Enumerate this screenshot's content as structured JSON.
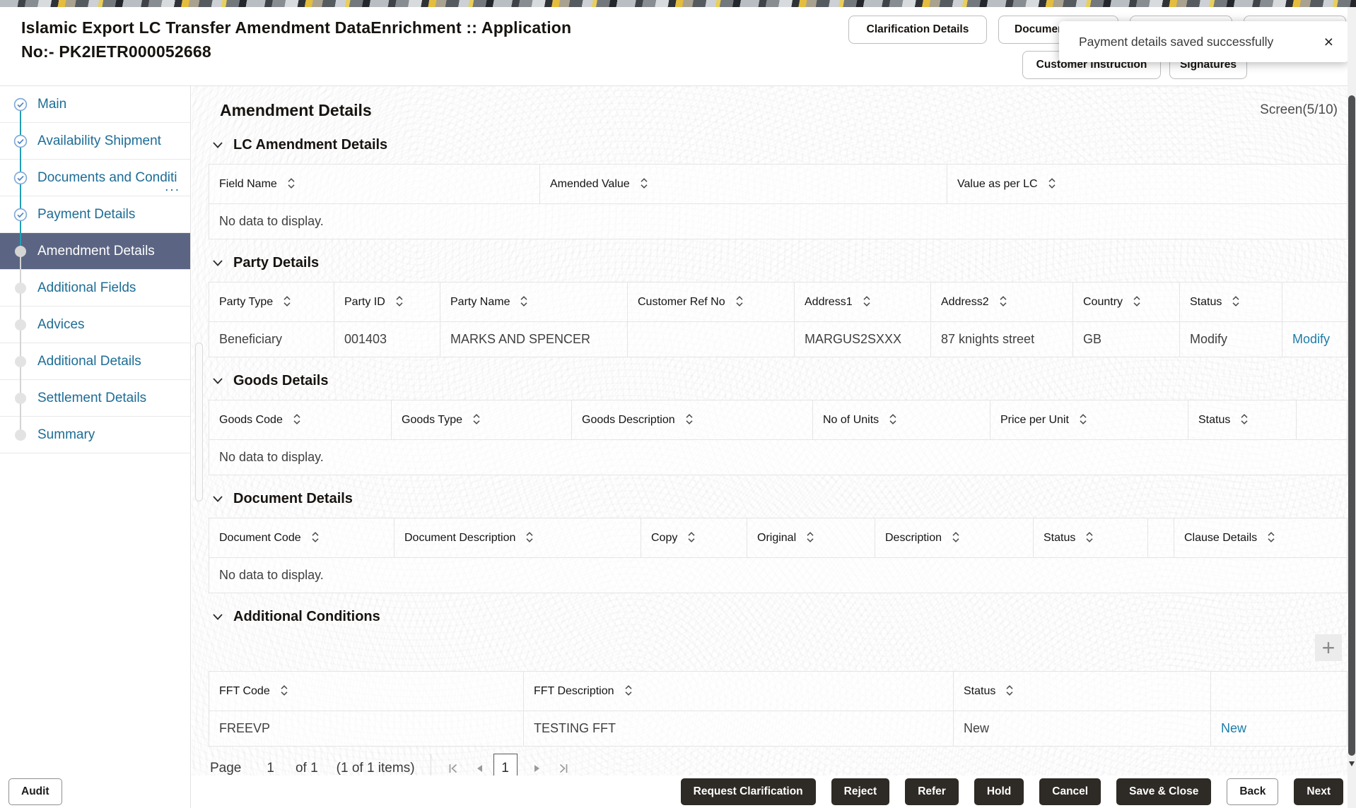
{
  "header": {
    "title_line1": "Islamic Export LC Transfer Amendment DataEnrichment :: Application",
    "title_line2": "No:- PK2IETR000052668",
    "buttons_row1": [
      {
        "label": "Clarification Details",
        "name": "clarification-details-button"
      },
      {
        "label": "Documents",
        "name": "documents-button"
      },
      {
        "label": "",
        "name": "hidden-button-1"
      },
      {
        "label": "",
        "name": "hidden-button-2"
      }
    ],
    "buttons_row2": [
      {
        "label": "Customer Instruction",
        "name": "customer-instruction-button"
      },
      {
        "label": "Signatures",
        "name": "signatures-button"
      }
    ],
    "toast": {
      "message": "Payment details saved successfully",
      "close_icon": "×"
    }
  },
  "sidebar": {
    "steps": [
      {
        "label": "Main",
        "state": "completed"
      },
      {
        "label": "Availability Shipment",
        "state": "completed"
      },
      {
        "label": "Documents and Conditi",
        "state": "completed",
        "ellipsis": "..."
      },
      {
        "label": "Payment Details",
        "state": "completed"
      },
      {
        "label": "Amendment Details",
        "state": "active"
      },
      {
        "label": "Additional Fields",
        "state": "upcoming"
      },
      {
        "label": "Advices",
        "state": "upcoming"
      },
      {
        "label": "Additional Details",
        "state": "upcoming"
      },
      {
        "label": "Settlement Details",
        "state": "upcoming"
      },
      {
        "label": "Summary",
        "state": "upcoming"
      }
    ]
  },
  "content": {
    "page_title": "Amendment Details",
    "screen_indicator": "Screen(5/10)",
    "sections": {
      "lc": {
        "title": "LC Amendment Details"
      },
      "party": {
        "title": "Party Details"
      },
      "goods": {
        "title": "Goods Details"
      },
      "docs": {
        "title": "Document Details"
      },
      "fft": {
        "title": "Additional Conditions"
      }
    },
    "tables": {
      "lc": {
        "columns": [
          "Field Name",
          "Amended Value",
          "Value as per LC"
        ],
        "widths": [
          468,
          576,
          566
        ],
        "rows": [],
        "empty_text": "No data to display."
      },
      "party": {
        "columns": [
          "Party Type",
          "Party ID",
          "Party Name",
          "Customer Ref No",
          "Address1",
          "Address2",
          "Country",
          "Status",
          ""
        ],
        "widths": [
          177,
          150,
          265,
          236,
          193,
          201,
          151,
          145,
          92
        ],
        "rows": [
          {
            "cells": [
              "Beneficiary",
              "001403",
              "MARKS AND SPENCER",
              "",
              "MARGUS2SXXX",
              "87 knights street",
              "GB",
              "Modify"
            ],
            "link": "Modify"
          }
        ],
        "empty_text": "No data to display."
      },
      "goods": {
        "columns": [
          "Goods Code",
          "Goods Type",
          "Goods Description",
          "No of Units",
          "Price per Unit",
          "Status",
          ""
        ],
        "widths": [
          258,
          255,
          341,
          251,
          280,
          153,
          72
        ],
        "rows": [],
        "empty_text": "No data to display."
      },
      "docs": {
        "columns": [
          "Document Code",
          "Document Description",
          "Copy",
          "Original",
          "Description",
          "Status",
          "",
          "Clause Details"
        ],
        "widths": [
          262,
          349,
          150,
          181,
          224,
          162,
          37,
          245
        ],
        "rows": [],
        "empty_text": "No data to display."
      },
      "fft": {
        "columns": [
          "FFT Code",
          "FFT Description",
          "Status",
          ""
        ],
        "widths": [
          445,
          608,
          364,
          193
        ],
        "rows": [
          {
            "cells": [
              "FREEVP",
              "TESTING FFT",
              "New"
            ],
            "link": "New"
          }
        ],
        "empty_text": "No data to display."
      }
    },
    "plus_icon": "+"
  },
  "pagination": {
    "label": "Page",
    "current_value": "1",
    "of_label": "of 1",
    "items_label": "(1 of 1 items)",
    "page_box_value": "1"
  },
  "footer": {
    "audit": {
      "label": "Audit",
      "name": "audit-button",
      "style": "light"
    },
    "actions": [
      {
        "label": "Request Clarification",
        "name": "request-clarification-button",
        "style": "dark"
      },
      {
        "label": "Reject",
        "name": "reject-button",
        "style": "dark"
      },
      {
        "label": "Refer",
        "name": "refer-button",
        "style": "dark"
      },
      {
        "label": "Hold",
        "name": "hold-button",
        "style": "dark"
      },
      {
        "label": "Cancel",
        "name": "cancel-button",
        "style": "dark"
      },
      {
        "label": "Save & Close",
        "name": "save-close-button",
        "style": "dark"
      },
      {
        "label": "Back",
        "name": "back-button",
        "style": "light"
      },
      {
        "label": "Next",
        "name": "next-button",
        "style": "dark"
      }
    ]
  },
  "colors": {
    "active_step_bg": "#5b6583",
    "step_text": "#1d6d96",
    "connector_teal": "#219eb4",
    "link": "#1d7ca9",
    "dark_button": "#2e2a25",
    "accent_yellow": "#e4bd3e"
  }
}
